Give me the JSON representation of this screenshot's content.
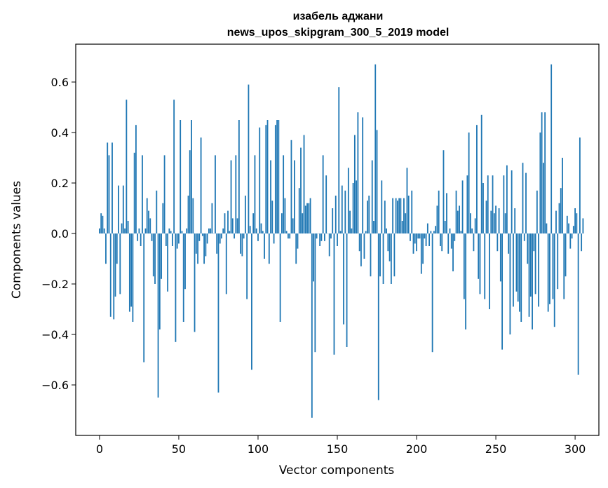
{
  "chart_data": {
    "type": "bar",
    "title": "изабель аджани",
    "subtitle": "news_upos_skipgram_300_5_2019 model",
    "xlabel": "Vector components",
    "ylabel": "Components values",
    "xlim": [
      -15,
      315
    ],
    "ylim": [
      -0.8,
      0.75
    ],
    "x_ticks": [
      0,
      50,
      100,
      150,
      200,
      250,
      300
    ],
    "x_tick_labels": [
      "0",
      "50",
      "100",
      "150",
      "200",
      "250",
      "300"
    ],
    "y_ticks": [
      -0.6,
      -0.4,
      -0.2,
      0.0,
      0.2,
      0.4,
      0.6
    ],
    "y_tick_labels": [
      "−0.6",
      "−0.4",
      "−0.2",
      "0.0",
      "0.2",
      "0.4",
      "0.6"
    ],
    "grid": false,
    "bar_color": "#1f77b4",
    "series": [
      {
        "x_start": 0,
        "values": [
          0.02,
          0.08,
          0.07,
          0.02,
          -0.12,
          0.36,
          0.31,
          -0.33,
          0.36,
          -0.34,
          -0.25,
          -0.12,
          0.19,
          -0.24,
          0.04,
          0.19,
          0.02,
          0.53,
          0.05,
          -0.31,
          -0.29,
          -0.35,
          0.32,
          0.43,
          -0.03,
          0.02,
          -0.05,
          0.31,
          -0.51,
          0.02,
          0.14,
          0.09,
          0.06,
          -0.03,
          -0.17,
          -0.2,
          0.17,
          -0.65,
          -0.38,
          -0.18,
          0.12,
          0.31,
          -0.05,
          -0.23,
          0.02,
          0.01,
          -0.05,
          0.53,
          -0.43,
          -0.06,
          -0.04,
          0.45,
          0.01,
          -0.35,
          -0.22,
          0.02,
          0.15,
          0.33,
          0.45,
          0.14,
          -0.39,
          -0.08,
          -0.12,
          -0.03,
          0.38,
          -0.01,
          -0.12,
          -0.09,
          -0.04,
          0.02,
          0.02,
          0.12,
          0.0,
          0.31,
          -0.08,
          -0.63,
          -0.04,
          -0.02,
          0.02,
          0.08,
          -0.24,
          0.09,
          0.01,
          0.29,
          0.06,
          -0.02,
          0.31,
          0.06,
          0.45,
          -0.08,
          -0.09,
          -0.02,
          0.15,
          -0.26,
          0.59,
          0.03,
          -0.54,
          0.08,
          0.31,
          0.02,
          -0.03,
          0.42,
          0.04,
          0.01,
          -0.1,
          0.43,
          0.45,
          -0.12,
          0.29,
          0.13,
          -0.04,
          0.43,
          0.45,
          0.45,
          -0.35,
          0.08,
          0.31,
          0.14,
          0.01,
          -0.02,
          -0.02,
          0.37,
          0.06,
          0.29,
          -0.12,
          -0.06,
          0.18,
          0.34,
          0.08,
          0.39,
          0.11,
          0.12,
          0.12,
          0.14,
          -0.73,
          -0.19,
          -0.47,
          -0.02,
          0.0,
          -0.05,
          -0.03,
          0.31,
          -0.03,
          0.23,
          0.0,
          -0.09,
          -0.02,
          0.1,
          -0.48,
          0.15,
          -0.05,
          0.58,
          0.01,
          0.19,
          -0.36,
          0.17,
          -0.45,
          0.26,
          0.09,
          0.02,
          0.2,
          0.39,
          0.21,
          0.48,
          -0.07,
          -0.13,
          0.46,
          -0.1,
          0.01,
          0.13,
          0.15,
          -0.17,
          0.29,
          0.05,
          0.67,
          0.41,
          -0.66,
          -0.17,
          0.21,
          -0.2,
          0.13,
          0.02,
          -0.07,
          -0.11,
          -0.2,
          0.14,
          -0.17,
          0.14,
          0.13,
          0.14,
          0.14,
          0.05,
          0.14,
          0.08,
          0.26,
          0.15,
          -0.03,
          0.17,
          -0.08,
          -0.04,
          -0.07,
          -0.02,
          -0.02,
          -0.16,
          -0.12,
          -0.02,
          -0.05,
          0.04,
          -0.05,
          0.01,
          -0.47,
          0.01,
          0.03,
          0.11,
          0.17,
          -0.05,
          -0.07,
          0.33,
          0.05,
          0.16,
          -0.08,
          0.02,
          -0.06,
          -0.15,
          -0.03,
          0.17,
          0.09,
          0.11,
          0.01,
          0.21,
          -0.26,
          -0.38,
          0.23,
          0.4,
          0.08,
          0.02,
          -0.07,
          0.06,
          0.43,
          -0.18,
          -0.24,
          0.47,
          0.2,
          -0.26,
          0.13,
          0.23,
          -0.3,
          0.09,
          0.23,
          0.08,
          0.11,
          -0.07,
          0.1,
          -0.19,
          -0.46,
          0.23,
          0.08,
          0.27,
          -0.08,
          -0.4,
          0.25,
          -0.29,
          0.1,
          -0.23,
          -0.27,
          -0.31,
          -0.35,
          0.28,
          -0.03,
          0.24,
          -0.12,
          -0.33,
          -0.25,
          -0.38,
          -0.07,
          -0.24,
          0.17,
          -0.29,
          0.4,
          0.48,
          0.28,
          0.48,
          0.04,
          -0.31,
          -0.28,
          0.67,
          -0.26,
          -0.37,
          0.09,
          -0.22,
          0.12,
          0.18,
          0.3,
          -0.26,
          -0.17,
          0.07,
          0.04,
          -0.06,
          -0.02,
          0.03,
          0.1,
          0.08,
          -0.56,
          0.38,
          -0.07,
          0.06
        ]
      }
    ]
  }
}
